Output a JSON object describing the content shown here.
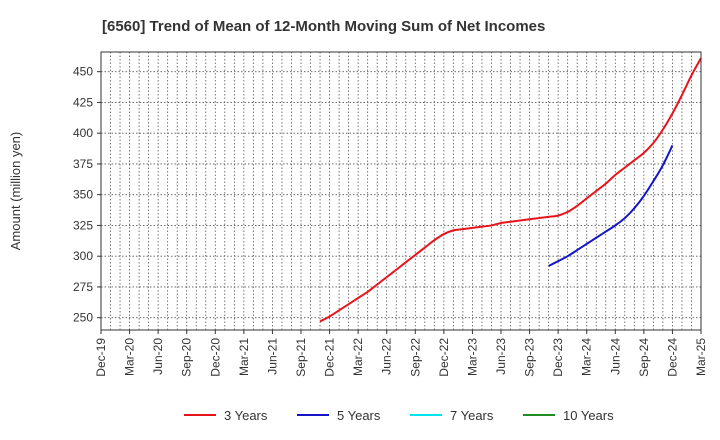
{
  "chart_data": {
    "type": "line",
    "title": "[6560]  Trend of Mean of 12-Month Moving Sum of Net Incomes",
    "ylabel": "Amount (million yen)",
    "xlabel": "",
    "ylim": [
      240,
      466
    ],
    "yticks": [
      250,
      275,
      300,
      325,
      350,
      375,
      400,
      425,
      450
    ],
    "x_categories": [
      "Dec-19",
      "Mar-20",
      "Jun-20",
      "Sep-20",
      "Dec-20",
      "Mar-21",
      "Jun-21",
      "Sep-21",
      "Dec-21",
      "Mar-22",
      "Jun-22",
      "Sep-22",
      "Dec-22",
      "Mar-23",
      "Jun-23",
      "Sep-23",
      "Dec-23",
      "Mar-24",
      "Jun-24",
      "Sep-24",
      "Dec-24",
      "Mar-25"
    ],
    "grid": true,
    "legend_position": "bottom",
    "series": [
      {
        "name": "3 Years",
        "color": "#e8141b",
        "points": [
          [
            "Nov-21",
            247
          ],
          [
            "Dec-21",
            251
          ],
          [
            "Jan-22",
            256
          ],
          [
            "Feb-22",
            261
          ],
          [
            "Mar-22",
            266
          ],
          [
            "Apr-22",
            271
          ],
          [
            "May-22",
            277
          ],
          [
            "Jun-22",
            283
          ],
          [
            "Jul-22",
            289
          ],
          [
            "Aug-22",
            295
          ],
          [
            "Sep-22",
            301
          ],
          [
            "Oct-22",
            307
          ],
          [
            "Nov-22",
            313
          ],
          [
            "Dec-22",
            318
          ],
          [
            "Jan-23",
            321
          ],
          [
            "Feb-23",
            322
          ],
          [
            "Mar-23",
            323
          ],
          [
            "Apr-23",
            324
          ],
          [
            "May-23",
            325
          ],
          [
            "Jun-23",
            327
          ],
          [
            "Jul-23",
            328
          ],
          [
            "Aug-23",
            329
          ],
          [
            "Sep-23",
            330
          ],
          [
            "Oct-23",
            331
          ],
          [
            "Nov-23",
            332
          ],
          [
            "Dec-23",
            333
          ],
          [
            "Jan-24",
            336
          ],
          [
            "Feb-24",
            341
          ],
          [
            "Mar-24",
            347
          ],
          [
            "Apr-24",
            353
          ],
          [
            "May-24",
            359
          ],
          [
            "Jun-24",
            366
          ],
          [
            "Jul-24",
            372
          ],
          [
            "Aug-24",
            378
          ],
          [
            "Sep-24",
            384
          ],
          [
            "Oct-24",
            392
          ],
          [
            "Nov-24",
            403
          ],
          [
            "Dec-24",
            416
          ],
          [
            "Jan-25",
            431
          ],
          [
            "Feb-25",
            447
          ],
          [
            "Mar-25",
            461
          ]
        ]
      },
      {
        "name": "5 Years",
        "color": "#1414c8",
        "points": [
          [
            "Nov-23",
            292
          ],
          [
            "Dec-23",
            296
          ],
          [
            "Jan-24",
            300
          ],
          [
            "Feb-24",
            305
          ],
          [
            "Mar-24",
            310
          ],
          [
            "Apr-24",
            315
          ],
          [
            "May-24",
            320
          ],
          [
            "Jun-24",
            325
          ],
          [
            "Jul-24",
            331
          ],
          [
            "Aug-24",
            339
          ],
          [
            "Sep-24",
            349
          ],
          [
            "Oct-24",
            361
          ],
          [
            "Nov-24",
            374
          ],
          [
            "Dec-24",
            390
          ]
        ]
      },
      {
        "name": "7 Years",
        "color": "#00e5ee",
        "points": []
      },
      {
        "name": "10 Years",
        "color": "#228b22",
        "points": []
      }
    ]
  }
}
